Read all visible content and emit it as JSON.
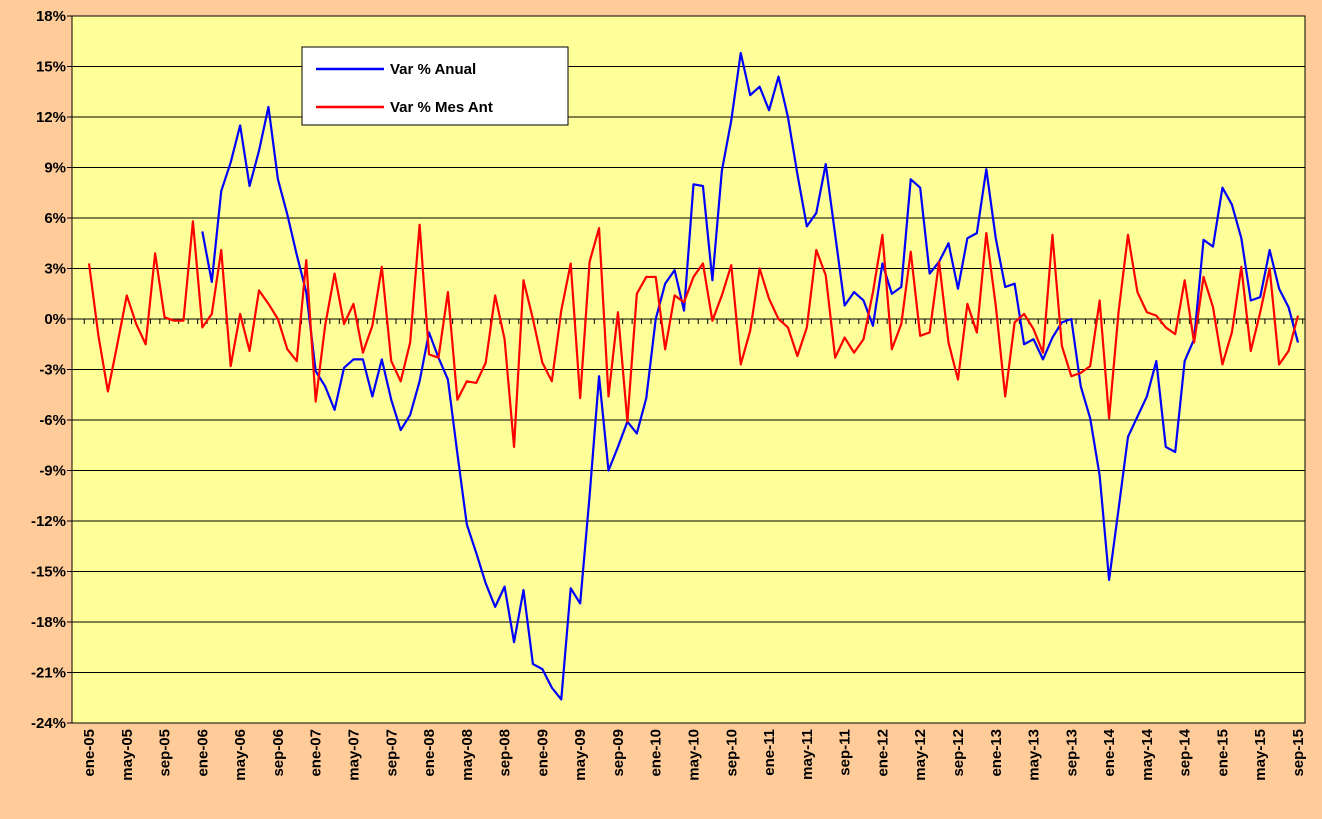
{
  "chart_data": {
    "type": "line",
    "categories": [
      "ene-05",
      null,
      null,
      null,
      "may-05",
      null,
      null,
      null,
      "sep-05",
      null,
      null,
      null,
      "ene-06",
      null,
      null,
      null,
      "may-06",
      null,
      null,
      null,
      "sep-06",
      null,
      null,
      null,
      "ene-07",
      null,
      null,
      null,
      "may-07",
      null,
      null,
      null,
      "sep-07",
      null,
      null,
      null,
      "ene-08",
      null,
      null,
      null,
      "may-08",
      null,
      null,
      null,
      "sep-08",
      null,
      null,
      null,
      "ene-09",
      null,
      null,
      null,
      "may-09",
      null,
      null,
      null,
      "sep-09",
      null,
      null,
      null,
      "ene-10",
      null,
      null,
      null,
      "may-10",
      null,
      null,
      null,
      "sep-10",
      null,
      null,
      null,
      "ene-11",
      null,
      null,
      null,
      "may-11",
      null,
      null,
      null,
      "sep-11",
      null,
      null,
      null,
      "ene-12",
      null,
      null,
      null,
      "may-12",
      null,
      null,
      null,
      "sep-12",
      null,
      null,
      null,
      "ene-13",
      null,
      null,
      null,
      "may-13",
      null,
      null,
      null,
      "sep-13",
      null,
      null,
      null,
      "ene-14",
      null,
      null,
      null,
      "may-14",
      null,
      null,
      null,
      "sep-14",
      null,
      null,
      null,
      "ene-15",
      null,
      null,
      null,
      "may-15",
      null,
      null,
      null,
      "sep-15"
    ],
    "series": [
      {
        "name": "Var % Anual",
        "color": "#0000ff",
        "values": [
          null,
          null,
          null,
          null,
          null,
          null,
          null,
          null,
          null,
          null,
          null,
          null,
          5.2,
          2.2,
          7.6,
          9.3,
          11.5,
          7.9,
          10.0,
          12.6,
          8.3,
          6.2,
          3.8,
          1.6,
          -3.1,
          -4.0,
          -5.4,
          -2.9,
          -2.4,
          -2.4,
          -4.6,
          -2.4,
          -4.8,
          -6.6,
          -5.7,
          -3.7,
          -0.8,
          -2.3,
          -3.6,
          -8.0,
          -12.2,
          -13.9,
          -15.7,
          -17.1,
          -15.9,
          -19.2,
          -16.1,
          -20.5,
          -20.8,
          -21.9,
          -22.6,
          -16.0,
          -16.9,
          -10.5,
          -3.4,
          -9.0,
          -7.6,
          -6.1,
          -6.8,
          -4.7,
          0.0,
          2.1,
          2.9,
          0.5,
          8.0,
          7.9,
          2.3,
          8.8,
          11.8,
          15.8,
          13.3,
          13.8,
          12.4,
          14.4,
          12.0,
          8.6,
          5.5,
          6.3,
          9.2,
          5.0,
          0.8,
          1.6,
          1.1,
          -0.4,
          3.3,
          1.5,
          1.9,
          8.3,
          7.8,
          2.7,
          3.4,
          4.5,
          1.8,
          4.8,
          5.1,
          8.9,
          4.8,
          1.9,
          2.1,
          -1.5,
          -1.2,
          -2.4,
          -1.1,
          -0.2,
          0.0,
          -4.0,
          -5.9,
          -9.3,
          -15.5,
          -11.3,
          -7.0,
          -5.8,
          -4.6,
          -2.5,
          -7.6,
          -7.9,
          -2.5,
          -1.2,
          4.7,
          4.3,
          7.8,
          6.8,
          4.8,
          1.1,
          1.3,
          4.1,
          1.8,
          0.7,
          -1.4
        ]
      },
      {
        "name": "Var % Mes Ant",
        "color": "#ff0000",
        "values": [
          3.3,
          -1.0,
          -4.3,
          -1.5,
          1.4,
          -0.3,
          -1.5,
          3.9,
          0.1,
          -0.1,
          -0.1,
          5.8,
          -0.5,
          0.3,
          4.1,
          -2.8,
          0.3,
          -1.9,
          1.7,
          0.9,
          0.0,
          -1.8,
          -2.5,
          3.5,
          -4.9,
          -0.4,
          2.7,
          -0.3,
          0.9,
          -2.0,
          -0.4,
          3.1,
          -2.5,
          -3.7,
          -1.4,
          5.6,
          -2.1,
          -2.3,
          1.6,
          -4.8,
          -3.7,
          -3.8,
          -2.6,
          1.4,
          -1.2,
          -7.6,
          2.3,
          0.0,
          -2.6,
          -3.7,
          0.5,
          3.3,
          -4.7,
          3.4,
          5.4,
          -4.6,
          0.4,
          -6.1,
          1.5,
          2.5,
          2.5,
          -1.8,
          1.4,
          1.0,
          2.5,
          3.3,
          -0.1,
          1.4,
          3.2,
          -2.7,
          -0.7,
          3.0,
          1.2,
          0.0,
          -0.5,
          -2.2,
          -0.5,
          4.1,
          2.6,
          -2.3,
          -1.1,
          -2.0,
          -1.2,
          1.6,
          5.0,
          -1.8,
          -0.3,
          4.0,
          -1.0,
          -0.8,
          3.4,
          -1.4,
          -3.6,
          0.9,
          -0.8,
          5.1,
          0.8,
          -4.6,
          -0.2,
          0.3,
          -0.6,
          -2.0,
          5.0,
          -1.6,
          -3.4,
          -3.2,
          -2.8,
          1.1,
          -5.9,
          0.4,
          5.0,
          1.6,
          0.4,
          0.2,
          -0.5,
          -0.9,
          2.3,
          -1.4,
          2.5,
          0.7,
          -2.7,
          -0.8,
          3.1,
          -1.9,
          0.4,
          3.0,
          -2.7,
          -1.9,
          0.2
        ]
      }
    ],
    "ylim": [
      -24,
      18
    ],
    "yticks": [
      {
        "value": -24,
        "label": "-24%"
      },
      {
        "value": -21,
        "label": "-21%"
      },
      {
        "value": -18,
        "label": "-18%"
      },
      {
        "value": -15,
        "label": "-15%"
      },
      {
        "value": -12,
        "label": "-12%"
      },
      {
        "value": -9,
        "label": "-9%"
      },
      {
        "value": -6,
        "label": "-6%"
      },
      {
        "value": -3,
        "label": "-3%"
      },
      {
        "value": 0,
        "label": "0%"
      },
      {
        "value": 3,
        "label": "3%"
      },
      {
        "value": 6,
        "label": "6%"
      },
      {
        "value": 9,
        "label": "9%"
      },
      {
        "value": 12,
        "label": "12%"
      },
      {
        "value": 15,
        "label": "15%"
      },
      {
        "value": 18,
        "label": "18%"
      }
    ],
    "grid": true
  }
}
